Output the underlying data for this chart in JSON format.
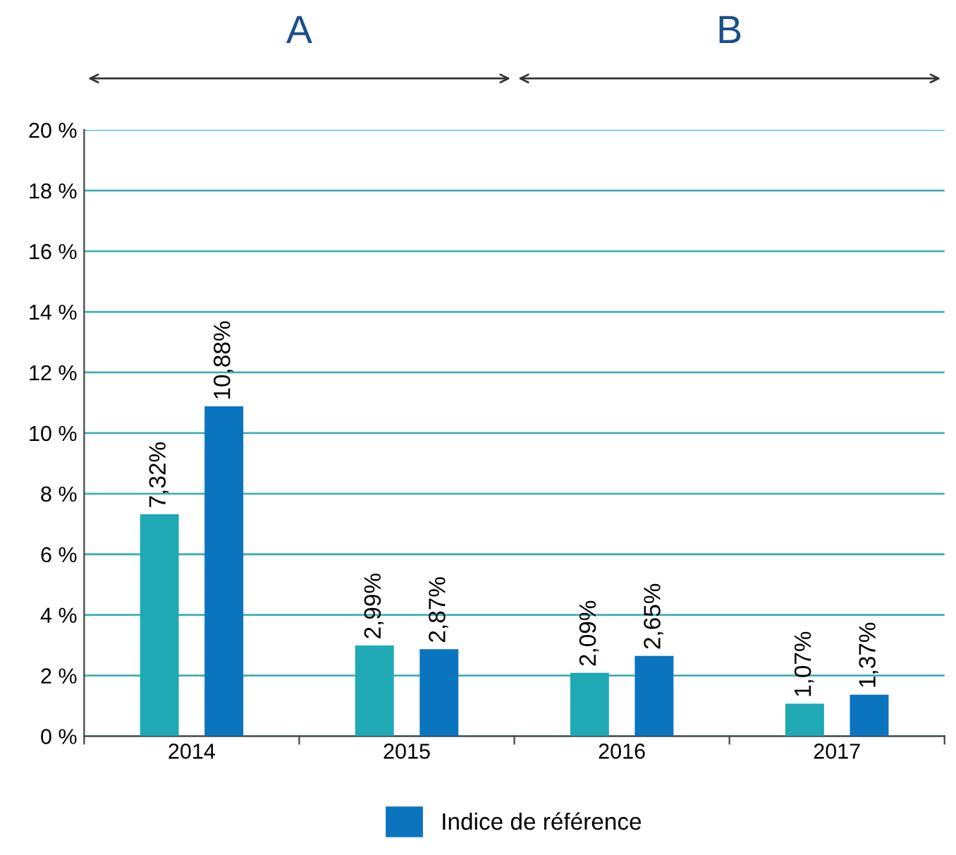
{
  "chart_data": {
    "type": "bar",
    "categories": [
      "2014",
      "2015",
      "2016",
      "2017"
    ],
    "series": [
      {
        "color": "#1fa9b5",
        "values": [
          7.32,
          2.99,
          2.09,
          1.07
        ],
        "value_labels": [
          "7,32%",
          "2,99%",
          "2,09%",
          "1,07%"
        ]
      },
      {
        "name": "Indice de référence",
        "color": "#0b74bf",
        "values": [
          10.88,
          2.87,
          2.65,
          1.37
        ],
        "value_labels": [
          "10,88%",
          "2,87%",
          "2,65%",
          "1,37%"
        ]
      }
    ],
    "ylim": [
      0,
      20
    ],
    "yticks": [
      {
        "value": 0,
        "label": "0 %"
      },
      {
        "value": 2,
        "label": "2 %"
      },
      {
        "value": 4,
        "label": "4 %"
      },
      {
        "value": 6,
        "label": "6 %"
      },
      {
        "value": 8,
        "label": "8 %"
      },
      {
        "value": 10,
        "label": "10 %"
      },
      {
        "value": 12,
        "label": "12 %"
      },
      {
        "value": 14,
        "label": "14 %"
      },
      {
        "value": 16,
        "label": "16 %"
      },
      {
        "value": 18,
        "label": "18 %"
      },
      {
        "value": 20,
        "label": "20 %"
      }
    ],
    "grid": "y",
    "legend": "bottom",
    "annotations": [
      "A",
      "B"
    ]
  }
}
